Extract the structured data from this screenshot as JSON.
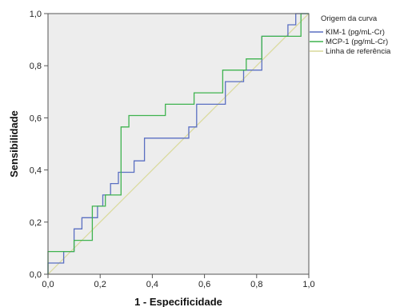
{
  "chart_data": {
    "type": "line",
    "xlabel": "1 - Especificidade",
    "ylabel": "Sensibilidade",
    "xlim": [
      0,
      1
    ],
    "ylim": [
      0,
      1
    ],
    "x_ticks": [
      "0,0",
      "0,2",
      "0,4",
      "0,6",
      "0,8",
      "1,0"
    ],
    "y_ticks": [
      "0,0",
      "0,2",
      "0,4",
      "0,6",
      "0,8",
      "1,0"
    ],
    "grid": false,
    "legend": {
      "title": "Origem da curva",
      "placement": "top-right, outside plot"
    },
    "plot_background": "#ededed",
    "series": [
      {
        "name": "KIM-1 (pg/mL-Cr)",
        "color": "#5a6fc2",
        "points": [
          [
            0,
            0
          ],
          [
            0,
            0.043
          ],
          [
            0.06,
            0.043
          ],
          [
            0.06,
            0.087
          ],
          [
            0.1,
            0.087
          ],
          [
            0.1,
            0.174
          ],
          [
            0.13,
            0.174
          ],
          [
            0.13,
            0.217
          ],
          [
            0.19,
            0.217
          ],
          [
            0.19,
            0.261
          ],
          [
            0.21,
            0.261
          ],
          [
            0.21,
            0.304
          ],
          [
            0.24,
            0.304
          ],
          [
            0.24,
            0.348
          ],
          [
            0.27,
            0.348
          ],
          [
            0.27,
            0.391
          ],
          [
            0.33,
            0.391
          ],
          [
            0.33,
            0.435
          ],
          [
            0.37,
            0.435
          ],
          [
            0.37,
            0.522
          ],
          [
            0.54,
            0.522
          ],
          [
            0.54,
            0.565
          ],
          [
            0.57,
            0.565
          ],
          [
            0.57,
            0.652
          ],
          [
            0.68,
            0.652
          ],
          [
            0.68,
            0.739
          ],
          [
            0.75,
            0.739
          ],
          [
            0.75,
            0.783
          ],
          [
            0.82,
            0.783
          ],
          [
            0.82,
            0.913
          ],
          [
            0.92,
            0.913
          ],
          [
            0.92,
            0.957
          ],
          [
            0.95,
            0.957
          ],
          [
            0.95,
            1.0
          ],
          [
            1.0,
            1.0
          ]
        ]
      },
      {
        "name": "MCP-1 (pg/mL-Cr)",
        "color": "#3fb34f",
        "points": [
          [
            0,
            0
          ],
          [
            0,
            0.087
          ],
          [
            0.1,
            0.087
          ],
          [
            0.1,
            0.13
          ],
          [
            0.17,
            0.13
          ],
          [
            0.17,
            0.261
          ],
          [
            0.22,
            0.261
          ],
          [
            0.22,
            0.304
          ],
          [
            0.28,
            0.304
          ],
          [
            0.28,
            0.565
          ],
          [
            0.31,
            0.565
          ],
          [
            0.31,
            0.609
          ],
          [
            0.45,
            0.609
          ],
          [
            0.45,
            0.652
          ],
          [
            0.56,
            0.652
          ],
          [
            0.56,
            0.696
          ],
          [
            0.67,
            0.696
          ],
          [
            0.67,
            0.783
          ],
          [
            0.76,
            0.783
          ],
          [
            0.76,
            0.826
          ],
          [
            0.82,
            0.826
          ],
          [
            0.82,
            0.913
          ],
          [
            0.97,
            0.913
          ],
          [
            0.97,
            1.0
          ],
          [
            1.0,
            1.0
          ]
        ]
      },
      {
        "name": "Linha de referência",
        "color": "#d9d99a",
        "points": [
          [
            0,
            0
          ],
          [
            1,
            1
          ]
        ]
      }
    ]
  }
}
